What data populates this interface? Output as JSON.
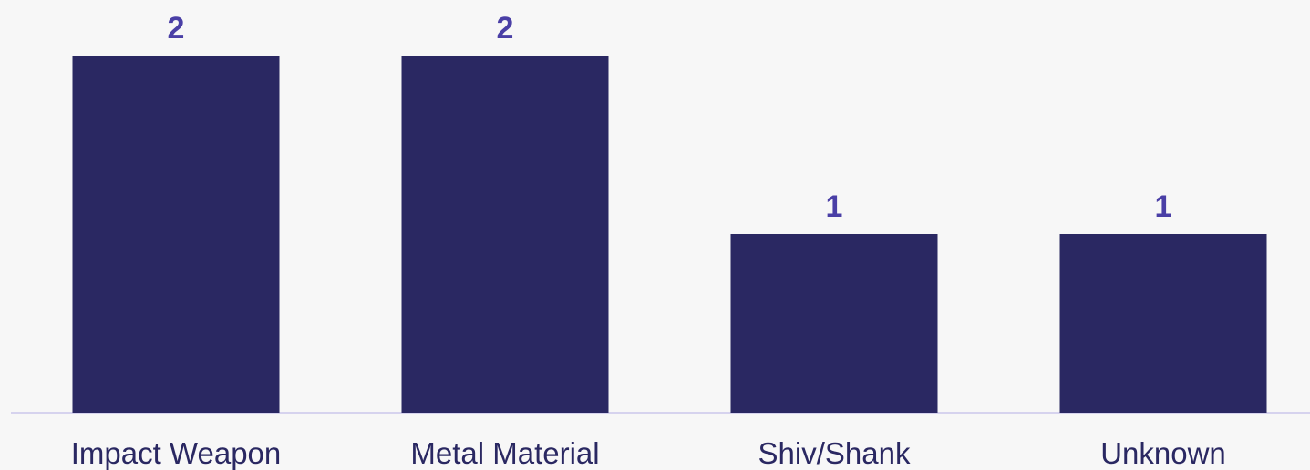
{
  "chart_data": {
    "type": "bar",
    "title": "",
    "xlabel": "",
    "ylabel": "",
    "categories": [
      "Impact Weapon",
      "Metal Material",
      "Shiv/Shank",
      "Unknown"
    ],
    "values": [
      2,
      2,
      1,
      1
    ],
    "ylim": [
      0,
      2
    ],
    "grid": false,
    "legend": "none",
    "data_labels": true
  },
  "colors": {
    "background": "#f7f7f7",
    "bar": "#2a2862",
    "value_label": "#4a3fa6",
    "category_label": "#2a2862",
    "baseline": "#d6d3ee"
  }
}
